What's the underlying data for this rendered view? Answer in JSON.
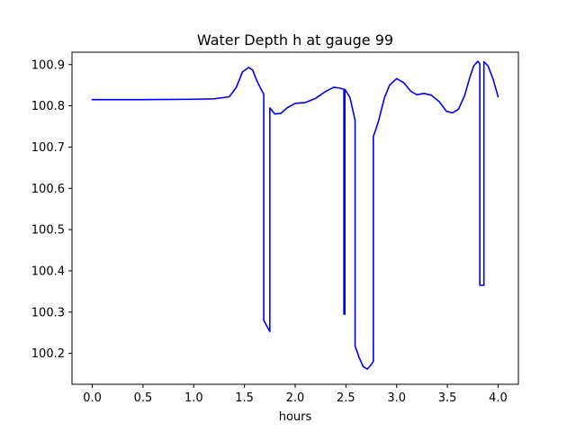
{
  "chart_data": {
    "type": "line",
    "title": "Water Depth h at gauge 99",
    "xlabel": "hours",
    "ylabel": "",
    "xlim": [
      -0.2,
      4.2
    ],
    "ylim": [
      100.125,
      100.93
    ],
    "xticks": [
      0.0,
      0.5,
      1.0,
      1.5,
      2.0,
      2.5,
      3.0,
      3.5,
      4.0
    ],
    "xtick_labels": [
      "0.0",
      "0.5",
      "1.0",
      "1.5",
      "2.0",
      "2.5",
      "3.0",
      "3.5",
      "4.0"
    ],
    "yticks": [
      100.2,
      100.3,
      100.4,
      100.5,
      100.6,
      100.7,
      100.8,
      100.9
    ],
    "ytick_labels": [
      "100.2",
      "100.3",
      "100.4",
      "100.5",
      "100.6",
      "100.7",
      "100.8",
      "100.9"
    ],
    "grid": false,
    "legend": "none",
    "series": [
      {
        "color": "#0000ff",
        "x": [
          0.0,
          0.5,
          1.0,
          1.2,
          1.35,
          1.42,
          1.48,
          1.54,
          1.58,
          1.62,
          1.66,
          1.69,
          1.69,
          1.75,
          1.75,
          1.8,
          1.86,
          1.92,
          2.0,
          2.1,
          2.2,
          2.3,
          2.38,
          2.44,
          2.48,
          2.48,
          2.49,
          2.49,
          2.54,
          2.59,
          2.59,
          2.63,
          2.67,
          2.71,
          2.74,
          2.77,
          2.77,
          2.82,
          2.88,
          2.93,
          3.0,
          3.07,
          3.14,
          3.2,
          3.27,
          3.34,
          3.42,
          3.49,
          3.55,
          3.61,
          3.67,
          3.72,
          3.76,
          3.8,
          3.82,
          3.82,
          3.86,
          3.86,
          3.9,
          3.95,
          4.0
        ],
        "y": [
          100.815,
          100.815,
          100.816,
          100.817,
          100.822,
          100.845,
          100.882,
          100.893,
          100.887,
          100.862,
          100.842,
          100.828,
          100.28,
          100.253,
          100.795,
          100.78,
          100.782,
          100.795,
          100.806,
          100.808,
          100.818,
          100.835,
          100.845,
          100.843,
          100.84,
          100.295,
          100.295,
          100.84,
          100.82,
          100.765,
          100.218,
          100.19,
          100.168,
          100.162,
          100.17,
          100.18,
          100.725,
          100.762,
          100.82,
          100.85,
          100.866,
          100.856,
          100.835,
          100.827,
          100.83,
          100.826,
          100.81,
          100.787,
          100.783,
          100.792,
          100.825,
          100.868,
          100.897,
          100.908,
          100.902,
          100.365,
          100.365,
          100.907,
          100.897,
          100.865,
          100.822
        ]
      }
    ]
  }
}
